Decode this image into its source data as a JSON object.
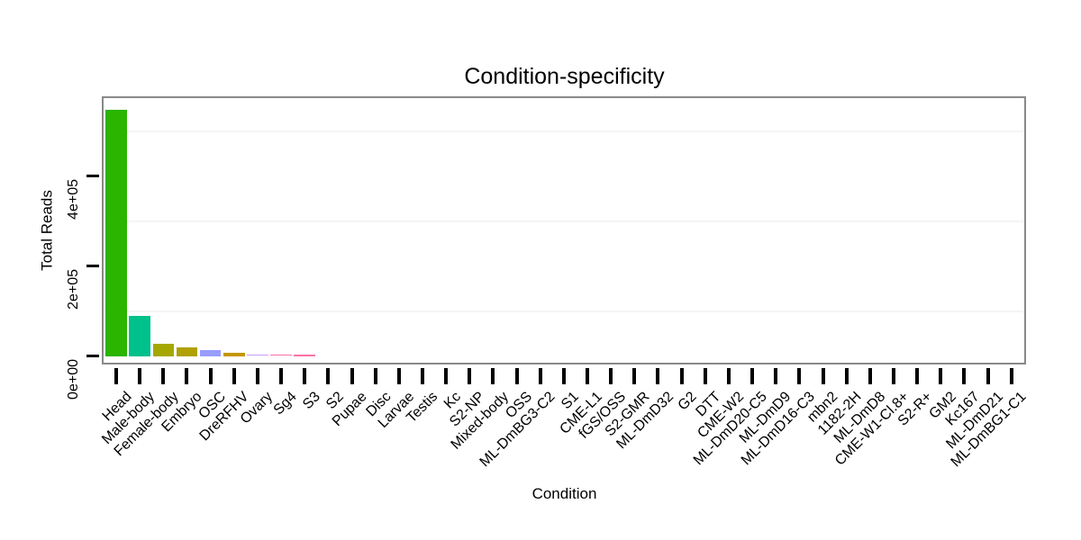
{
  "title": "Condition-specificity",
  "chart_data": {
    "type": "bar",
    "title": "Condition-specificity",
    "xlabel": "Condition",
    "ylabel": "Total Reads",
    "legend": "none",
    "grid": "minor-horizontal-only",
    "background_color": "#ffffff",
    "panel_border_color": "#898989",
    "tick_color": "#000000",
    "minor_grid_color": "#f5f5f5",
    "ylim": [
      0,
      580000
    ],
    "yticks": [
      {
        "value": 0,
        "label": "0e+00"
      },
      {
        "value": 200000,
        "label": "2e+05"
      },
      {
        "value": 400000,
        "label": "4e+05"
      }
    ],
    "minor_gridlines": [
      100000,
      300000,
      500000
    ],
    "categories": [
      "Head",
      "Male-body",
      "Female-body",
      "Embryo",
      "OSC",
      "DreRFHV",
      "Ovary",
      "Sg4",
      "S3",
      "S2",
      "Pupae",
      "Disc",
      "Larvae",
      "Testis",
      "Kc",
      "S2-NP",
      "Mixed-body",
      "OSS",
      "ML-DmBG3-C2",
      "S1",
      "CME-L1",
      "fGS/OSS",
      "S2-GMR",
      "ML-DmD32",
      "G2",
      "DTT",
      "CME-W2",
      "ML-DmD20-C5",
      "ML-DmD9",
      "ML-DmD16-C3",
      "mbn2",
      "1182-2H",
      "ML-DmD8",
      "CME-W1-Cl.8+",
      "S2-R+",
      "GM2",
      "Kc167",
      "ML-DmD21",
      "ML-DmBG1-C1"
    ],
    "values": [
      547000,
      89000,
      28000,
      20000,
      12500,
      7000,
      3200,
      2600,
      2500,
      0,
      0,
      0,
      0,
      0,
      0,
      0,
      0,
      0,
      0,
      0,
      0,
      0,
      0,
      0,
      0,
      0,
      0,
      0,
      0,
      0,
      0,
      0,
      0,
      0,
      0,
      0,
      0,
      0,
      0
    ],
    "bar_colors": [
      "#2bb400",
      "#00c08b",
      "#a5a800",
      "#b0a100",
      "#989dff",
      "#c39700",
      "#c89fff",
      "#ff74aa",
      "#ff70a6",
      null,
      null,
      null,
      null,
      null,
      null,
      null,
      null,
      null,
      null,
      null,
      null,
      null,
      null,
      null,
      null,
      null,
      null,
      null,
      null,
      null,
      null,
      null,
      null,
      null,
      null,
      null,
      null,
      null,
      null
    ]
  }
}
